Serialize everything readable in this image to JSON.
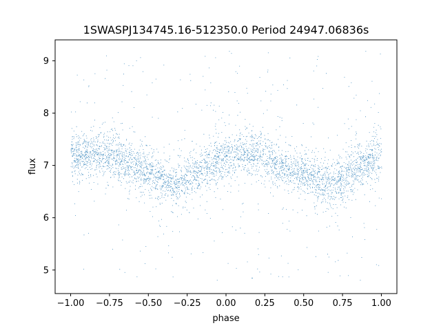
{
  "chart_data": {
    "type": "scatter",
    "title": "1SWASPJ134745.16-512350.0 Period 24947.06836s",
    "xlabel": "phase",
    "ylabel": "flux",
    "xlim": [
      -1.1,
      1.1
    ],
    "ylim": [
      4.55,
      9.4
    ],
    "x_ticks": [
      -1.0,
      -0.75,
      -0.5,
      -0.25,
      0.0,
      0.25,
      0.5,
      0.75,
      1.0
    ],
    "x_tick_labels": [
      "−1.00",
      "−0.75",
      "−0.50",
      "−0.25",
      "0.00",
      "0.25",
      "0.50",
      "0.75",
      "1.00"
    ],
    "y_ticks": [
      5,
      6,
      7,
      8,
      9
    ],
    "y_tick_labels": [
      "5",
      "6",
      "7",
      "8",
      "9"
    ],
    "grid": false,
    "marker_color": "#1f77b4",
    "series": [
      {
        "x": [
          -1.0,
          -0.9,
          -0.8,
          -0.7,
          -0.6,
          -0.5,
          -0.4,
          -0.33,
          -0.25,
          -0.15,
          -0.05,
          0.0,
          0.1,
          0.2,
          0.3,
          0.4,
          0.5,
          0.6,
          0.67,
          0.75,
          0.85,
          0.95,
          1.0
        ],
        "y": [
          7.15,
          7.22,
          7.25,
          7.15,
          7.0,
          6.85,
          6.7,
          6.62,
          6.75,
          6.95,
          7.12,
          7.15,
          7.22,
          7.22,
          7.1,
          6.95,
          6.85,
          6.7,
          6.62,
          6.75,
          6.95,
          7.1,
          7.15
        ]
      }
    ]
  }
}
